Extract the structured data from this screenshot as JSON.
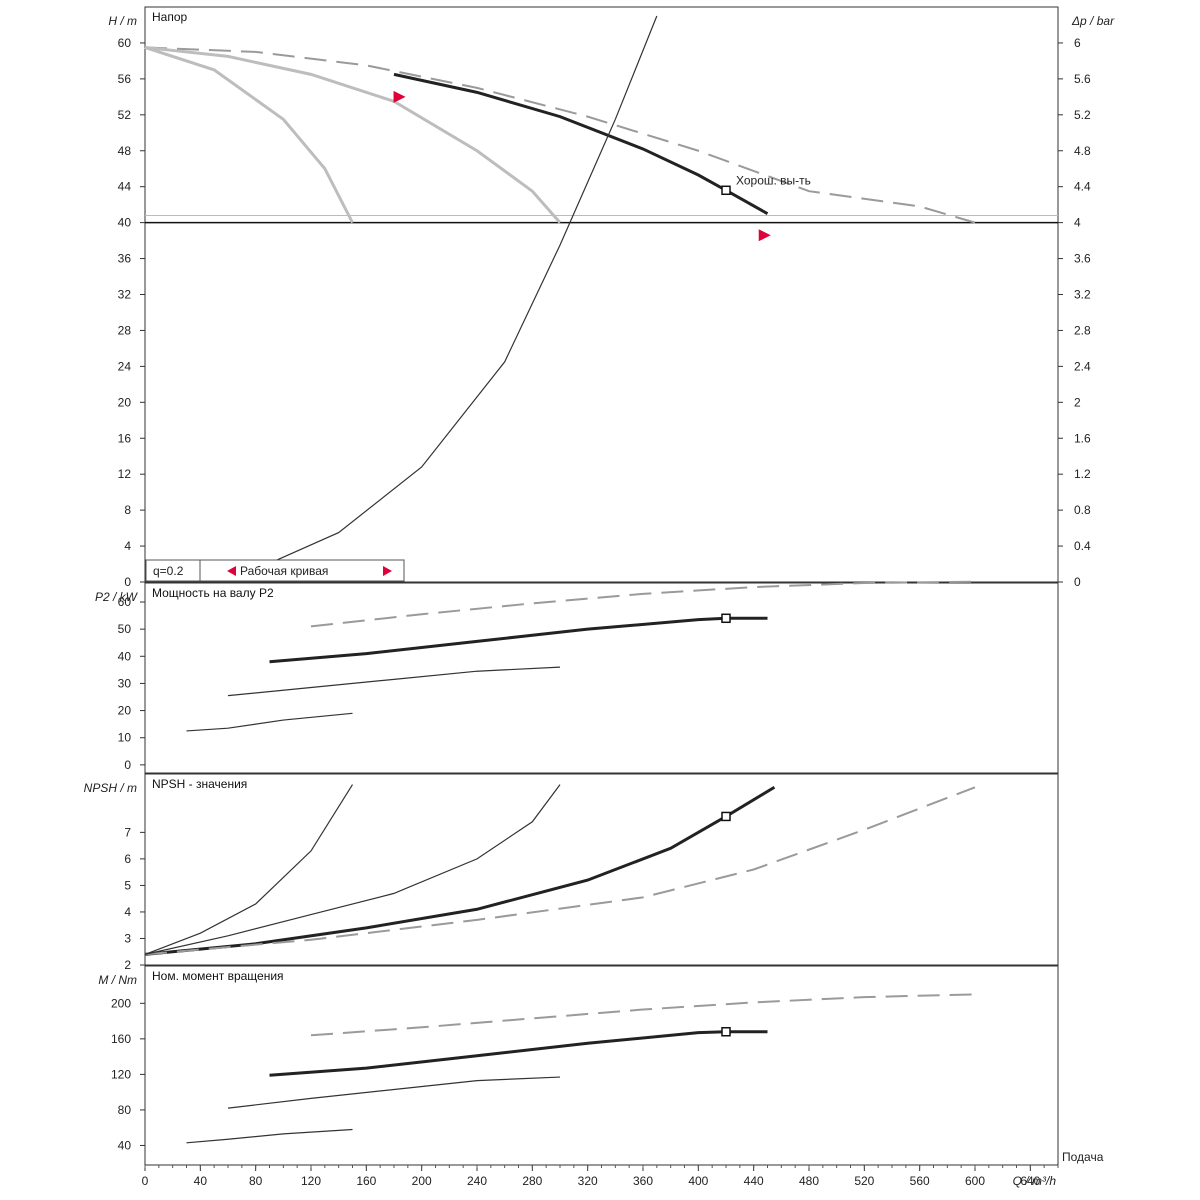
{
  "chart_data": {
    "type": "line",
    "x_axis": {
      "label": "Q / m³/h",
      "min": 0,
      "max": 660,
      "ticks": [
        0,
        40,
        80,
        120,
        160,
        200,
        240,
        280,
        320,
        360,
        400,
        440,
        480,
        520,
        560,
        600,
        640
      ],
      "corner_label": "Подача"
    },
    "panels": [
      {
        "id": "head",
        "title": "Напор",
        "ylabel": "H / m",
        "ylim": [
          0,
          64
        ],
        "yticks": [
          0,
          4,
          8,
          12,
          16,
          20,
          24,
          28,
          32,
          36,
          40,
          44,
          48,
          52,
          56,
          60
        ],
        "right_axis": {
          "label": "Δp / bar",
          "ticks": [
            "0",
            "0.4",
            "0.8",
            "1.2",
            "1.6",
            "2",
            "2.4",
            "2.8",
            "3.2",
            "3.6",
            "4",
            "4.4",
            "4.8",
            "5.2",
            "5.6",
            "6"
          ]
        },
        "operating_point_label": "Хорош. вы-ть",
        "legend_box": {
          "left": "q=0.2",
          "right": "Рабочая кривая"
        },
        "series": [
          {
            "style": "main",
            "x": [
              180,
              240,
              300,
              360,
              400,
              420,
              450
            ],
            "y": [
              56.5,
              54.5,
              51.8,
              48.2,
              45.3,
              43.6,
              41
            ]
          },
          {
            "style": "dash",
            "x": [
              0,
              80,
              160,
              240,
              320,
              400,
              480,
              560,
              600
            ],
            "y": [
              59.5,
              59,
              57.5,
              55,
              51.8,
              48,
              43.5,
              41.8,
              40
            ]
          },
          {
            "style": "gray",
            "x": [
              0,
              60,
              120,
              180,
              240,
              280,
              300
            ],
            "y": [
              59.5,
              58.5,
              56.5,
              53.5,
              48,
              43.5,
              40
            ]
          },
          {
            "style": "gray",
            "x": [
              0,
              50,
              100,
              130,
              150
            ],
            "y": [
              59.5,
              57,
              51.5,
              46,
              40
            ]
          },
          {
            "style": "thin",
            "x": [
              80,
              140,
              200,
              260,
              300,
              340,
              370
            ],
            "y": [
              1.4,
              5.5,
              12.8,
              24.5,
              37.5,
              51.5,
              63
            ]
          }
        ],
        "markers": [
          {
            "type": "square",
            "x": 420,
            "y": 43.6
          },
          {
            "type": "arrow",
            "x": 184,
            "y": 54
          },
          {
            "type": "arrow",
            "x": 448,
            "y": 38.6
          }
        ]
      },
      {
        "id": "power",
        "title": "Мощность на валу P2",
        "ylabel": "P2 / kW",
        "ylim": [
          -3,
          67
        ],
        "yticks": [
          0,
          10,
          20,
          30,
          40,
          50,
          60
        ],
        "series": [
          {
            "style": "main",
            "x": [
              90,
              160,
              240,
              320,
              400,
              420,
              450
            ],
            "y": [
              38,
              41,
              45.5,
              50,
              53.5,
              54,
              54
            ]
          },
          {
            "style": "dash",
            "x": [
              120,
              200,
              280,
              360,
              440,
              520,
              600
            ],
            "y": [
              51,
              55.5,
              59.5,
              63,
              65.5,
              67,
              67.5
            ]
          },
          {
            "style": "thin",
            "x": [
              60,
              120,
              180,
              240,
              300
            ],
            "y": [
              25.5,
              28.5,
              31.5,
              34.5,
              36
            ]
          },
          {
            "style": "thin",
            "x": [
              30,
              60,
              100,
              150
            ],
            "y": [
              12.5,
              13.5,
              16.5,
              19
            ]
          }
        ],
        "markers": [
          {
            "type": "square",
            "x": 420,
            "y": 54
          }
        ]
      },
      {
        "id": "npsh",
        "title": "NPSH - значения",
        "ylabel": "NPSH / m",
        "ylim": [
          2,
          9.2
        ],
        "yticks": [
          "2",
          "3",
          "4",
          "5",
          "6",
          "7"
        ],
        "series": [
          {
            "style": "main",
            "x": [
              0,
              80,
              160,
              240,
              320,
              380,
              420,
              455
            ],
            "y": [
              2.4,
              2.8,
              3.4,
              4.1,
              5.2,
              6.4,
              7.6,
              8.7
            ]
          },
          {
            "style": "dash",
            "x": [
              0,
              120,
              240,
              360,
              440,
              520,
              600
            ],
            "y": [
              2.4,
              2.95,
              3.7,
              4.55,
              5.6,
              7.1,
              8.7
            ]
          },
          {
            "style": "thin",
            "x": [
              0,
              60,
              120,
              180,
              240,
              280,
              300
            ],
            "y": [
              2.4,
              3.1,
              3.9,
              4.7,
              6,
              7.4,
              8.8
            ]
          },
          {
            "style": "thin",
            "x": [
              0,
              40,
              80,
              120,
              150
            ],
            "y": [
              2.4,
              3.2,
              4.3,
              6.3,
              8.8
            ]
          }
        ],
        "markers": [
          {
            "type": "square",
            "x": 420,
            "y": 7.6
          }
        ]
      },
      {
        "id": "torque",
        "title": "Ном. момент вращения",
        "ylabel": "M / Nm",
        "ylim": [
          18,
          242
        ],
        "yticks": [
          40,
          80,
          120,
          160,
          200
        ],
        "series": [
          {
            "style": "main",
            "x": [
              90,
              160,
              240,
              320,
              400,
              420,
              450
            ],
            "y": [
              119,
              127,
              141,
              155,
              167,
              168,
              168
            ]
          },
          {
            "style": "dash",
            "x": [
              120,
              200,
              280,
              360,
              440,
              520,
              600
            ],
            "y": [
              164,
              173,
              183,
              193,
              201,
              207,
              210
            ]
          },
          {
            "style": "thin",
            "x": [
              60,
              120,
              180,
              240,
              300
            ],
            "y": [
              82,
              93,
              103,
              113,
              117
            ]
          },
          {
            "style": "thin",
            "x": [
              30,
              60,
              100,
              150
            ],
            "y": [
              43,
              47,
              53,
              58
            ]
          }
        ],
        "markers": [
          {
            "type": "square",
            "x": 420,
            "y": 168
          }
        ]
      }
    ]
  }
}
